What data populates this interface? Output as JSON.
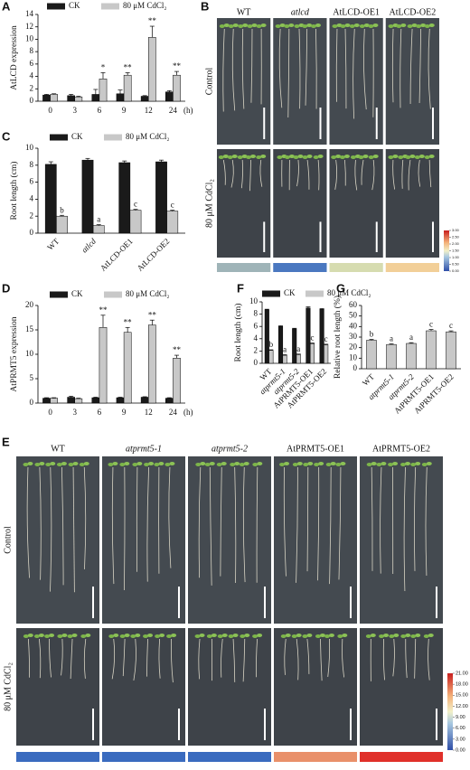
{
  "chart_data": [
    {
      "type": "bar",
      "panel_label": "A",
      "y_label": "AtLCD expression",
      "x_unit": "(h)",
      "categories": [
        "0",
        "3",
        "6",
        "9",
        "12",
        "24"
      ],
      "series": [
        {
          "name": "CK",
          "color": "#1a1a1a",
          "values": [
            1.0,
            0.9,
            1.1,
            1.2,
            0.8,
            1.5
          ],
          "errors": [
            0.1,
            0.2,
            0.8,
            0.6,
            0.1,
            0.2
          ]
        },
        {
          "name": "80 μM CdCl₂",
          "color": "#c8c8c8",
          "values": [
            1.1,
            0.7,
            3.6,
            4.2,
            10.3,
            4.2
          ],
          "errors": [
            0.1,
            0.1,
            1.0,
            0.4,
            1.8,
            0.6
          ],
          "labels": [
            null,
            null,
            "*",
            "**",
            "**",
            "**"
          ]
        }
      ],
      "ylim": [
        0,
        14
      ],
      "yticks": [
        0,
        2,
        4,
        6,
        8,
        10,
        12,
        14
      ]
    },
    {
      "type": "bar",
      "panel_label": "C",
      "y_label": "Root length (cm)",
      "categories": [
        "WT",
        "atlcd",
        "AtLCD-OE1",
        "AtLCD-OE2"
      ],
      "series": [
        {
          "name": "CK",
          "color": "#1a1a1a",
          "values": [
            8.1,
            8.6,
            8.3,
            8.4
          ],
          "errors": [
            0.3,
            0.2,
            0.2,
            0.2
          ]
        },
        {
          "name": "80 μM CdCl₂",
          "color": "#c8c8c8",
          "values": [
            2.0,
            0.9,
            2.7,
            2.6
          ],
          "errors": [
            0.1,
            0.1,
            0.1,
            0.1
          ],
          "labels": [
            "b",
            "a",
            "c",
            "c"
          ]
        }
      ],
      "ylim": [
        0,
        10
      ],
      "yticks": [
        0,
        2,
        4,
        6,
        8,
        10
      ]
    },
    {
      "type": "bar",
      "panel_label": "D",
      "y_label": "AtPRMT5 expression",
      "x_unit": "(h)",
      "categories": [
        "0",
        "3",
        "6",
        "9",
        "12",
        "24"
      ],
      "series": [
        {
          "name": "CK",
          "color": "#1a1a1a",
          "values": [
            1.0,
            1.2,
            1.1,
            1.1,
            1.2,
            1.0
          ],
          "errors": [
            0.1,
            0.2,
            0.1,
            0.1,
            0.1,
            0.1
          ]
        },
        {
          "name": "80 μM CdCl₂",
          "color": "#c8c8c8",
          "values": [
            1.0,
            0.9,
            15.5,
            14.5,
            16.0,
            9.2
          ],
          "errors": [
            0.1,
            0.1,
            2.5,
            1.0,
            1.0,
            0.6
          ],
          "labels": [
            null,
            null,
            "**",
            "**",
            "**",
            "**"
          ]
        }
      ],
      "ylim": [
        0,
        20
      ],
      "yticks": [
        0,
        5,
        10,
        15,
        20
      ]
    },
    {
      "type": "bar",
      "panel_label": "F",
      "y_label": "Root length (cm)",
      "categories": [
        "WT",
        "atprmt5-1",
        "atprmt5-2",
        "AtPRMT5-OE1",
        "AtPRMT5-OE2"
      ],
      "series": [
        {
          "name": "CK",
          "color": "#1a1a1a",
          "values": [
            8.7,
            6.0,
            5.6,
            9.0,
            8.8
          ],
          "errors": [
            0.1,
            0.1,
            0.1,
            0.2,
            0.1
          ]
        },
        {
          "name": "80 μM CdCl₂",
          "color": "#c8c8c8",
          "values": [
            2.1,
            1.3,
            1.4,
            3.2,
            3.0
          ],
          "errors": [
            0.1,
            0.1,
            0.1,
            0.1,
            0.1
          ],
          "labels": [
            "b",
            "a",
            "a",
            "c",
            "c"
          ]
        }
      ],
      "ylim": [
        0,
        10
      ],
      "yticks": [
        0,
        2,
        4,
        6,
        8,
        10
      ]
    },
    {
      "type": "bar",
      "panel_label": "G",
      "y_label": "Relative root length (%)",
      "categories": [
        "WT",
        "atprmt5-1",
        "atprmt5-2",
        "AtPRMT5-OE1",
        "AtPRMT5-OE2"
      ],
      "color": "#c8c8c8",
      "values": [
        27,
        23,
        24,
        36,
        35
      ],
      "errors": [
        0.8,
        0.6,
        0.7,
        1.2,
        0.9
      ],
      "labels": [
        "b",
        "a",
        "a",
        "c",
        "c"
      ],
      "ylim": [
        0,
        60
      ],
      "yticks": [
        0,
        10,
        20,
        30,
        40,
        50,
        60
      ]
    }
  ],
  "photo_panels": [
    {
      "panel_label": "B",
      "columns": [
        "WT",
        "atlcd",
        "AtLCD-OE1",
        "AtLCD-OE2"
      ],
      "rows": [
        "Control",
        "80 μM CdCl₂"
      ],
      "strip_colors": [
        "#9fb4b8",
        "#4a78c0",
        "#d6dcb0",
        "#f2cf98"
      ],
      "scale_ticks": [
        {
          "value": 3,
          "label": "3.00"
        },
        {
          "value": 2.5,
          "label": "2.50"
        },
        {
          "value": 2,
          "label": "2.00"
        },
        {
          "value": 1.5,
          "label": "1.50"
        },
        {
          "value": 1,
          "label": "1.00"
        },
        {
          "value": 0.5,
          "label": "0.50"
        },
        {
          "value": 0,
          "label": "0.00"
        }
      ]
    },
    {
      "panel_label": "E",
      "columns": [
        "WT",
        "atprmt5-1",
        "atprmt5-2",
        "AtPRMT5-OE1",
        "AtPRMT5-OE2"
      ],
      "rows": [
        "Control",
        "80 μM CdCl₂"
      ],
      "strip_colors": [
        "#3a6bbf",
        "#3a6bbf",
        "#3a6bbf",
        "#e9906a",
        "#e0302a"
      ],
      "scale_ticks": [
        {
          "value": 21,
          "label": "21.00"
        },
        {
          "value": 18,
          "label": "18.00"
        },
        {
          "value": 15,
          "label": "15.00"
        },
        {
          "value": 12,
          "label": "12.00"
        },
        {
          "value": 9,
          "label": "9.00"
        },
        {
          "value": 6,
          "label": "6.00"
        },
        {
          "value": 3,
          "label": "3.00"
        },
        {
          "value": 0,
          "label": "0.00"
        }
      ]
    }
  ]
}
